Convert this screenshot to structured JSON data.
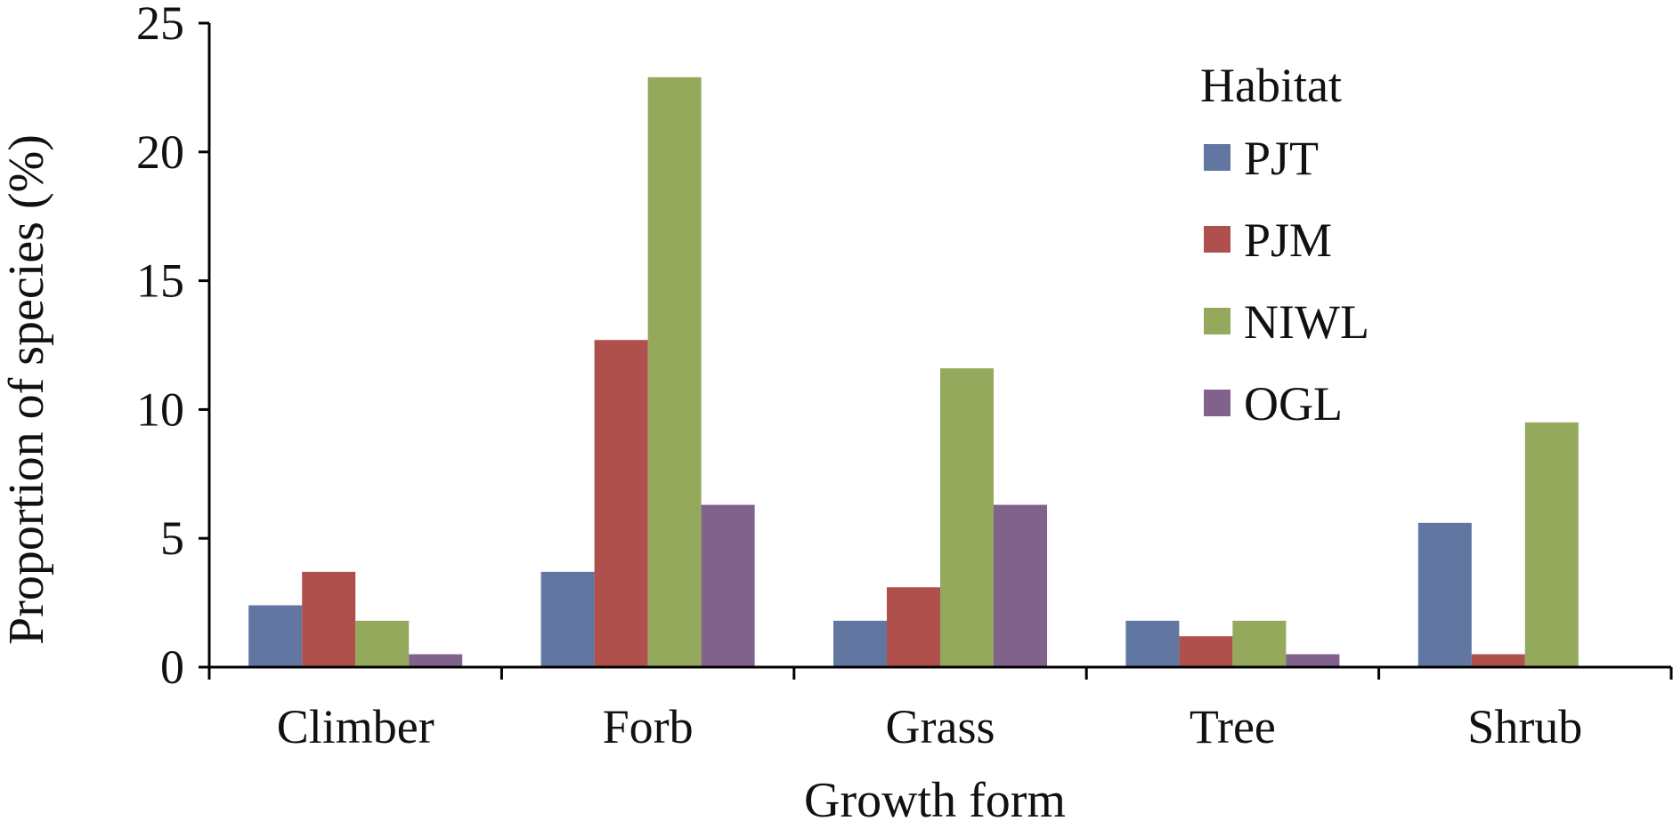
{
  "chart_data": {
    "type": "bar",
    "categories": [
      "Climber",
      "Forb",
      "Grass",
      "Tree",
      "Shrub"
    ],
    "series": [
      {
        "name": "PJT",
        "color": "#6176a0",
        "values": [
          2.4,
          3.7,
          1.8,
          1.8,
          5.6
        ]
      },
      {
        "name": "PJM",
        "color": "#b0504d",
        "values": [
          3.7,
          12.7,
          3.1,
          1.2,
          0.5
        ]
      },
      {
        "name": "NIWL",
        "color": "#95a95d",
        "values": [
          1.8,
          22.9,
          11.6,
          1.8,
          9.5
        ]
      },
      {
        "name": "OGL",
        "color": "#80628c",
        "values": [
          0.5,
          6.3,
          6.3,
          0.5,
          0
        ]
      }
    ],
    "xlabel": "Growth form",
    "ylabel": "Proportion of species (%)",
    "ylim": [
      0,
      25
    ],
    "yticks": [
      "0",
      "5",
      "10",
      "15",
      "20",
      "25"
    ],
    "legend": {
      "title": "Habitat",
      "placement": "top-right"
    },
    "grid": false
  }
}
